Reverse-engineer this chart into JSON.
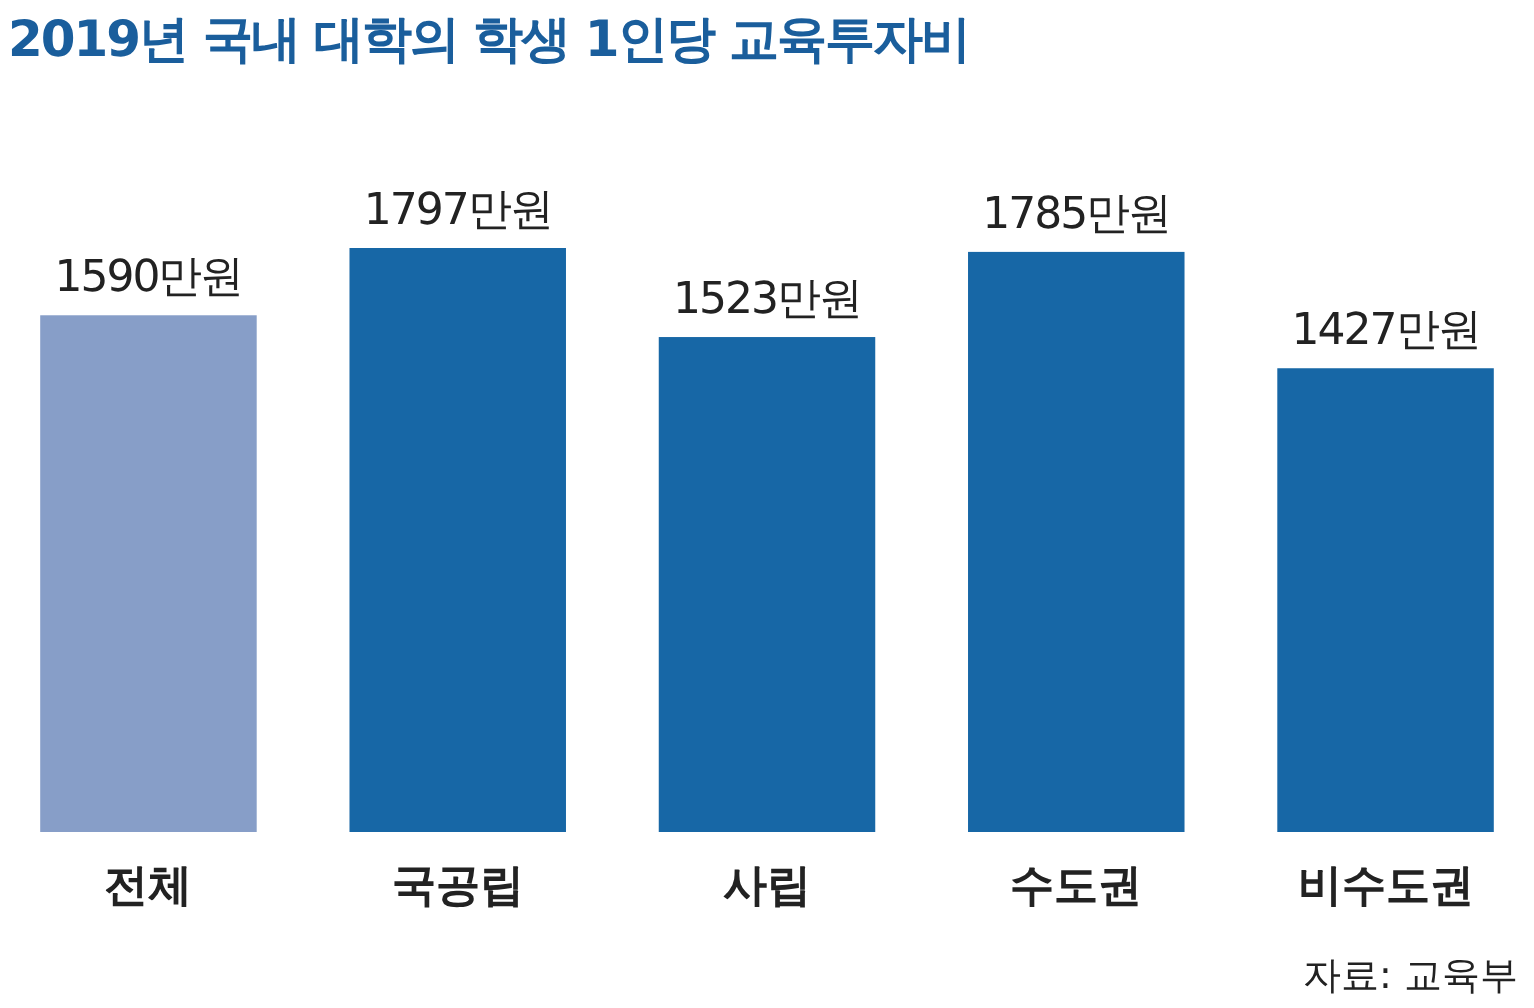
{
  "chart_data": {
    "type": "bar",
    "title": "2019년 국내 대학의 학생 1인당 교육투자비",
    "categories": [
      "전체",
      "국공립",
      "사립",
      "수도권",
      "비수도권"
    ],
    "values": [
      1590,
      1797,
      1523,
      1785,
      1427
    ],
    "colors": [
      "#879ec8",
      "#1767a6",
      "#1767a6",
      "#1767a6",
      "#1767a6"
    ],
    "value_labels": [
      "1590만원",
      "1797만원",
      "1523만원",
      "1785만원",
      "1427만원"
    ],
    "annotations": [
      "자료: 교육부"
    ]
  }
}
